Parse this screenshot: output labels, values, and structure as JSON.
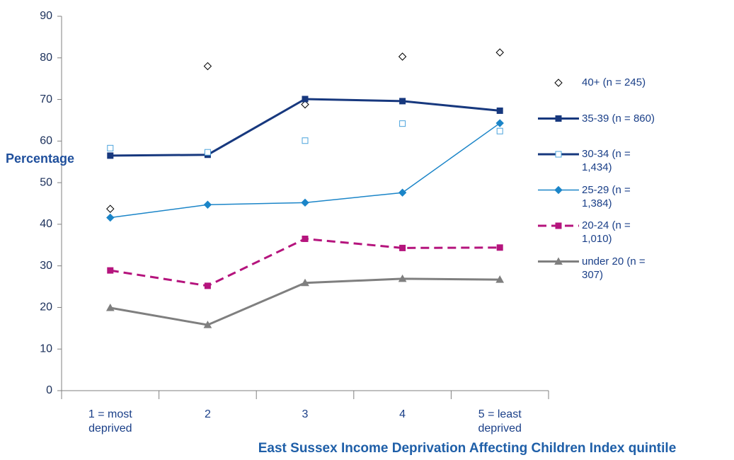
{
  "chart_data": {
    "type": "line",
    "x_label": "East Sussex Income Deprivation Affecting Children Index quintile",
    "y_label": "Percentage",
    "categories": [
      "1 = most deprived",
      "2",
      "3",
      "4",
      "5 = least deprived"
    ],
    "ylim": [
      0,
      90
    ],
    "yticks": [
      0,
      10,
      20,
      30,
      40,
      50,
      60,
      70,
      80,
      90
    ],
    "series": [
      {
        "name": "40+ (n = 245)",
        "color": "#000000",
        "line": "none",
        "marker": "diamond",
        "marker_fill": "open",
        "values": [
          43.7,
          78,
          68.8,
          80.3,
          81.3
        ]
      },
      {
        "name": "35-39 (n = 860)",
        "color": "#17387e",
        "line": "solid",
        "line_width": 3,
        "marker": "square",
        "marker_fill": "filled",
        "values": [
          56.5,
          56.7,
          70.1,
          69.6,
          67.3
        ]
      },
      {
        "name": "30-34 (n = 1,434)",
        "color": "#4ba3dc",
        "legend_line_color": "#17387e",
        "line": "none",
        "marker": "square",
        "marker_fill": "open",
        "values": [
          58.3,
          57.3,
          60.1,
          64.2,
          62.4
        ]
      },
      {
        "name": "25-29 (n = 1,384)",
        "color": "#1b85c8",
        "line": "solid",
        "line_width": 1.5,
        "marker": "diamond",
        "marker_fill": "filled",
        "values": [
          41.6,
          44.7,
          45.2,
          47.6,
          64.3
        ]
      },
      {
        "name": "20-24 (n = 1,010)",
        "color": "#b5147d",
        "line": "dashed",
        "line_width": 3,
        "marker": "square",
        "marker_fill": "filled",
        "values": [
          28.9,
          25.2,
          36.5,
          34.3,
          34.4
        ]
      },
      {
        "name": "under 20 (n = 307)",
        "color": "#7f7f7f",
        "line": "solid",
        "line_width": 3,
        "marker": "triangle",
        "marker_fill": "filled",
        "values": [
          19.9,
          15.8,
          25.9,
          26.9,
          26.7
        ]
      }
    ]
  }
}
